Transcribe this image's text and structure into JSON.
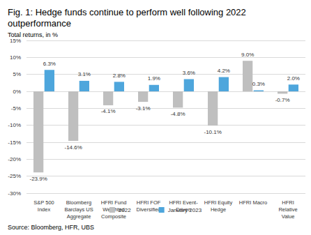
{
  "chart_data": {
    "type": "bar",
    "title": "Fig. 1: Hedge funds continue to perform well following 2022\noutperformance",
    "subtitle": "Total returns, in %",
    "source": "Source: Bloomberg, HFR, UBS",
    "categories": [
      "S&P 500\nIndex",
      "Bloomberg\nBarclays US\nAggregate",
      "HFRI Fund\nWeighted\nComposite",
      "HFRI FOF\nDiversified",
      "HFRI Event-\nDriven",
      "HFRI Equity\nHedge",
      "HFRI Macro",
      "HFRI\nRelative\nValue"
    ],
    "series": [
      {
        "name": "2022",
        "color": "#bfbfbf",
        "values": [
          -23.9,
          -14.6,
          -4.1,
          -3.1,
          -4.8,
          -10.1,
          9.0,
          -0.7
        ],
        "value_labels": [
          "-23.9%",
          "-14.6%",
          "-4.1%",
          "-3.1%",
          "-4.8%",
          "-10.1%",
          "9.0%",
          "-0.7%"
        ]
      },
      {
        "name": "January 2023",
        "color": "#4ea6dc",
        "values": [
          6.3,
          3.1,
          2.8,
          1.9,
          3.6,
          4.2,
          0.3,
          2.0
        ],
        "value_labels": [
          "6.3%",
          "3.1%",
          "2.8%",
          "1.9%",
          "3.6%",
          "4.2%",
          "0.3%",
          "2.0%"
        ]
      }
    ],
    "ylim": [
      -30,
      15
    ],
    "yticks": [
      {
        "value": -30,
        "label": "-30%"
      },
      {
        "value": -25,
        "label": "-25%"
      },
      {
        "value": -20,
        "label": "-20%"
      },
      {
        "value": -15,
        "label": "-15%"
      },
      {
        "value": -10,
        "label": "-10%"
      },
      {
        "value": -5,
        "label": "-5%"
      },
      {
        "value": 0,
        "label": "0%"
      },
      {
        "value": 5,
        "label": "5%"
      },
      {
        "value": 10,
        "label": "10%"
      },
      {
        "value": 15,
        "label": "15%"
      }
    ],
    "grid": true,
    "legend": "bottom",
    "data_labels": true
  }
}
